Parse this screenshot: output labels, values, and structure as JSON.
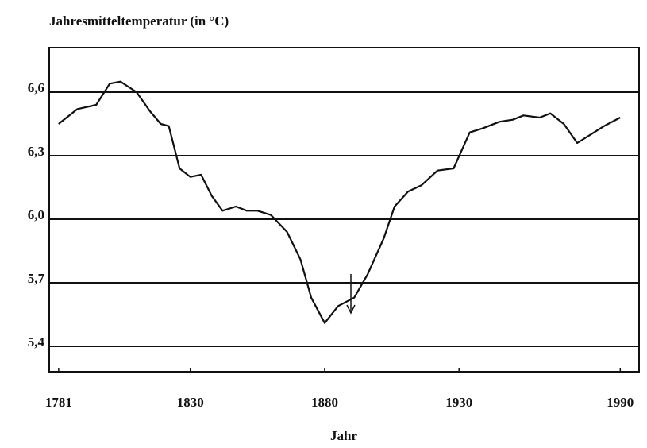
{
  "chart_data": {
    "type": "line",
    "title": "Jahresmitteltemperatur (in °C)",
    "x_label": "Jahr",
    "x": [
      1781,
      1788,
      1795,
      1800,
      1804,
      1810,
      1815,
      1819,
      1822,
      1826,
      1830,
      1834,
      1838,
      1842,
      1847,
      1851,
      1855,
      1860,
      1866,
      1871,
      1875,
      1880,
      1885,
      1891,
      1896,
      1902,
      1906,
      1911,
      1916,
      1922,
      1928,
      1934,
      1939,
      1945,
      1950,
      1954,
      1960,
      1964,
      1969,
      1974,
      1979,
      1984,
      1990
    ],
    "series": [
      {
        "name": "Jahresmitteltemperatur",
        "color": "#111111",
        "values": [
          6.45,
          6.52,
          6.54,
          6.64,
          6.65,
          6.6,
          6.51,
          6.45,
          6.44,
          6.24,
          6.2,
          6.21,
          6.11,
          6.04,
          6.06,
          6.04,
          6.04,
          6.02,
          5.94,
          5.81,
          5.63,
          5.51,
          5.59,
          5.63,
          5.74,
          5.91,
          6.06,
          6.13,
          6.16,
          6.23,
          6.24,
          6.41,
          6.43,
          6.46,
          6.47,
          6.49,
          6.48,
          6.5,
          6.45,
          6.36,
          6.4,
          6.44,
          6.48
        ]
      }
    ],
    "xlim": [
      1777.5,
      1997
    ],
    "xticks": [
      1781,
      1830,
      1880,
      1930,
      1990
    ],
    "ylim": [
      5.28,
      6.81
    ],
    "yticks": [
      {
        "value": 6.6,
        "label": "6,6"
      },
      {
        "value": 6.3,
        "label": "6,3"
      },
      {
        "value": 6.0,
        "label": "6,0"
      },
      {
        "value": 5.7,
        "label": "5,7"
      },
      {
        "value": 5.4,
        "label": "5,4"
      }
    ],
    "grid": true
  }
}
